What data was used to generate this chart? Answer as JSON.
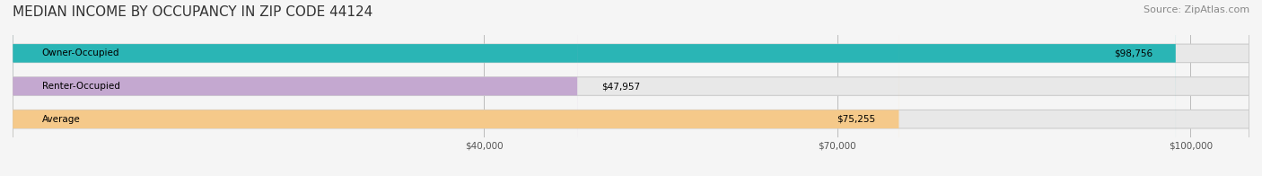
{
  "title": "MEDIAN INCOME BY OCCUPANCY IN ZIP CODE 44124",
  "source": "Source: ZipAtlas.com",
  "categories": [
    "Owner-Occupied",
    "Renter-Occupied",
    "Average"
  ],
  "values": [
    98756,
    47957,
    75255
  ],
  "bar_colors": [
    "#2ab5b5",
    "#c4a8d0",
    "#f5c98a"
  ],
  "bar_edge_colors": [
    "#2ab5b5",
    "#c4a8d0",
    "#f5c98a"
  ],
  "label_inside": [
    "Owner-Occupied",
    "Renter-Occupied",
    "Average"
  ],
  "value_labels": [
    "$98,756",
    "$47,957",
    "$75,255"
  ],
  "xlim": [
    0,
    105000
  ],
  "xticks": [
    40000,
    70000,
    100000
  ],
  "xticklabels": [
    "$40,000",
    "$70,000",
    "$100,000"
  ],
  "background_color": "#f5f5f5",
  "bar_background_color": "#e8e8e8",
  "title_fontsize": 11,
  "source_fontsize": 8,
  "bar_height": 0.55,
  "figsize": [
    14.06,
    1.96
  ],
  "dpi": 100
}
